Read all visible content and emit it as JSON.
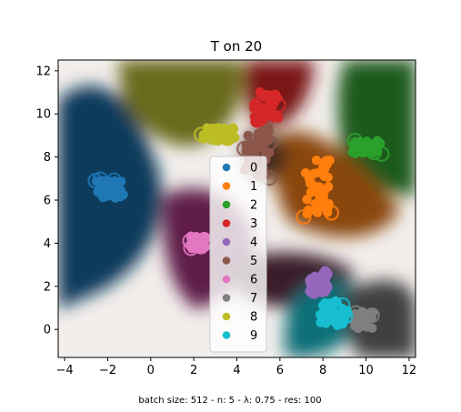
{
  "chart_data": {
    "type": "scatter",
    "title": "T on 20",
    "caption": "batch size: 512 - n: 5 - λ: 0.75 - res: 100",
    "xlim": [
      -4.3,
      12.3
    ],
    "ylim": [
      -1.3,
      12.5
    ],
    "x_ticks": [
      "−4",
      "−2",
      "0",
      "2",
      "4",
      "6",
      "8",
      "10",
      "12"
    ],
    "x_tick_values": [
      -4,
      -2,
      0,
      2,
      4,
      6,
      8,
      10,
      12
    ],
    "y_ticks": [
      "0",
      "2",
      "4",
      "6",
      "8",
      "10",
      "12"
    ],
    "y_tick_values": [
      0,
      2,
      4,
      6,
      8,
      10,
      12
    ],
    "legend_placement": "center",
    "grid": false,
    "series": [
      {
        "name": "0",
        "color": "#1f77b4",
        "cluster": {
          "x": [
            -2.6,
            -1.2
          ],
          "y": [
            6.0,
            7.0
          ]
        }
      },
      {
        "name": "1",
        "color": "#ff7f0e",
        "cluster": {
          "x": [
            7.1,
            8.4
          ],
          "y": [
            5.2,
            8.0
          ]
        }
      },
      {
        "name": "2",
        "color": "#2ca02c",
        "cluster": {
          "x": [
            9.3,
            10.8
          ],
          "y": [
            8.1,
            8.8
          ]
        }
      },
      {
        "name": "3",
        "color": "#d62728",
        "cluster": {
          "x": [
            4.7,
            6.0
          ],
          "y": [
            9.4,
            11.2
          ]
        }
      },
      {
        "name": "4",
        "color": "#9467bd",
        "cluster": {
          "x": [
            7.3,
            8.3
          ],
          "y": [
            1.6,
            2.8
          ]
        }
      },
      {
        "name": "5",
        "color": "#8c564b",
        "cluster": {
          "x": [
            4.3,
            5.6
          ],
          "y": [
            7.0,
            9.5
          ]
        }
      },
      {
        "name": "6",
        "color": "#e377c2",
        "cluster": {
          "x": [
            1.8,
            2.6
          ],
          "y": [
            3.7,
            4.4
          ]
        }
      },
      {
        "name": "7",
        "color": "#7f7f7f",
        "cluster": {
          "x": [
            9.4,
            10.4
          ],
          "y": [
            0.0,
            0.9
          ]
        }
      },
      {
        "name": "8",
        "color": "#bcbd22",
        "cluster": {
          "x": [
            2.3,
            4.0
          ],
          "y": [
            8.7,
            9.4
          ]
        }
      },
      {
        "name": "9",
        "color": "#17becf",
        "cluster": {
          "x": [
            7.8,
            9.2
          ],
          "y": [
            0.1,
            1.4
          ]
        }
      }
    ]
  }
}
